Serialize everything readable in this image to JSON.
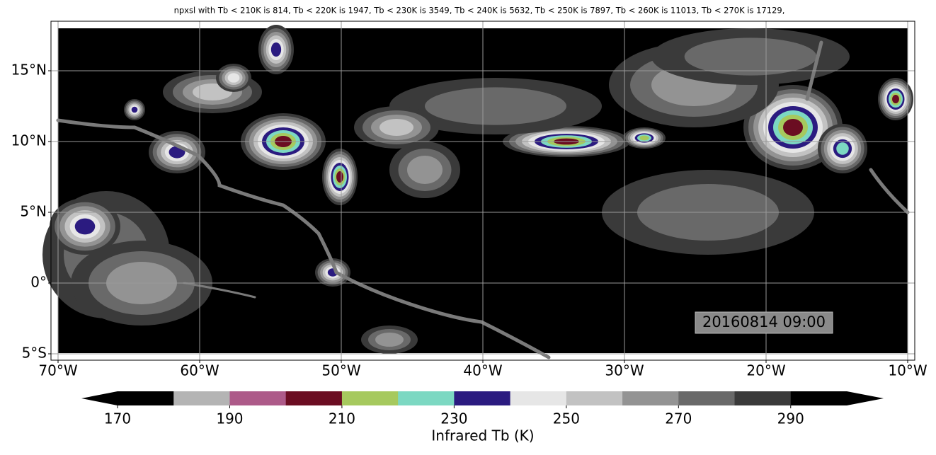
{
  "chart_data": {
    "type": "map",
    "title": "npxsl with Tb < 210K is 814,  Tb < 220K is 1947,  Tb < 230K is 3549,  Tb < 240K is 5632,  Tb < 250K is 7897,  Tb < 260K is 11013,  Tb < 270K is 17129,",
    "timestamp": "20160814 09:00",
    "xlim": [
      -70.5,
      -9.5
    ],
    "ylim": [
      -5.45,
      18.5
    ],
    "xticks": [
      {
        "value": -70,
        "label": "70°W"
      },
      {
        "value": -60,
        "label": "60°W"
      },
      {
        "value": -50,
        "label": "50°W"
      },
      {
        "value": -40,
        "label": "40°W"
      },
      {
        "value": -30,
        "label": "30°W"
      },
      {
        "value": -20,
        "label": "20°W"
      },
      {
        "value": -10,
        "label": "10°W"
      }
    ],
    "yticks": [
      {
        "value": -5,
        "label": "5°S"
      },
      {
        "value": 0,
        "label": "0°"
      },
      {
        "value": 5,
        "label": "5°N"
      },
      {
        "value": 10,
        "label": "10°N"
      },
      {
        "value": 15,
        "label": "15°N"
      }
    ],
    "grid": true,
    "colorbar": {
      "label": "Infrared Tb (K)",
      "extend": "both",
      "bounds": [
        170,
        180,
        190,
        200,
        210,
        220,
        230,
        240,
        250,
        260,
        270,
        280,
        290,
        300
      ],
      "colors": [
        "#000000",
        "#b4b4b4",
        "#ad5a89",
        "#6b0d22",
        "#a6c95e",
        "#7cd8c2",
        "#2b1b80",
        "#e6e6e6",
        "#c2c2c2",
        "#939393",
        "#696969",
        "#3a3a3a",
        "#000000"
      ],
      "ticks": [
        170,
        190,
        210,
        230,
        250,
        270,
        290
      ]
    }
  }
}
